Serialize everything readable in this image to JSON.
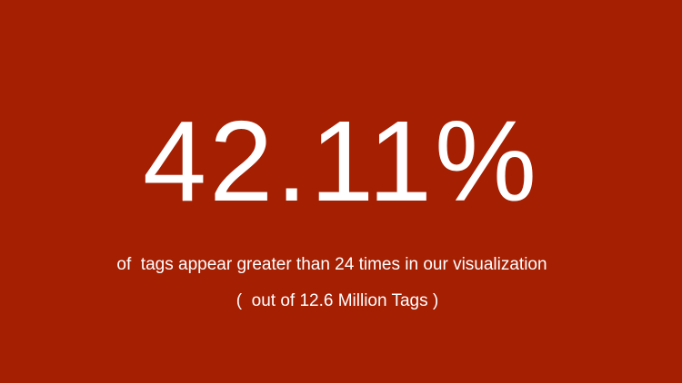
{
  "slide": {
    "background_color": "#a51f03",
    "text_color": "#ffffff",
    "headline_value": "42.11%",
    "caption": "of  tags appear greater than 24 times in our visualization",
    "sub_caption": "(  out of 12.6 Million Tags )"
  }
}
